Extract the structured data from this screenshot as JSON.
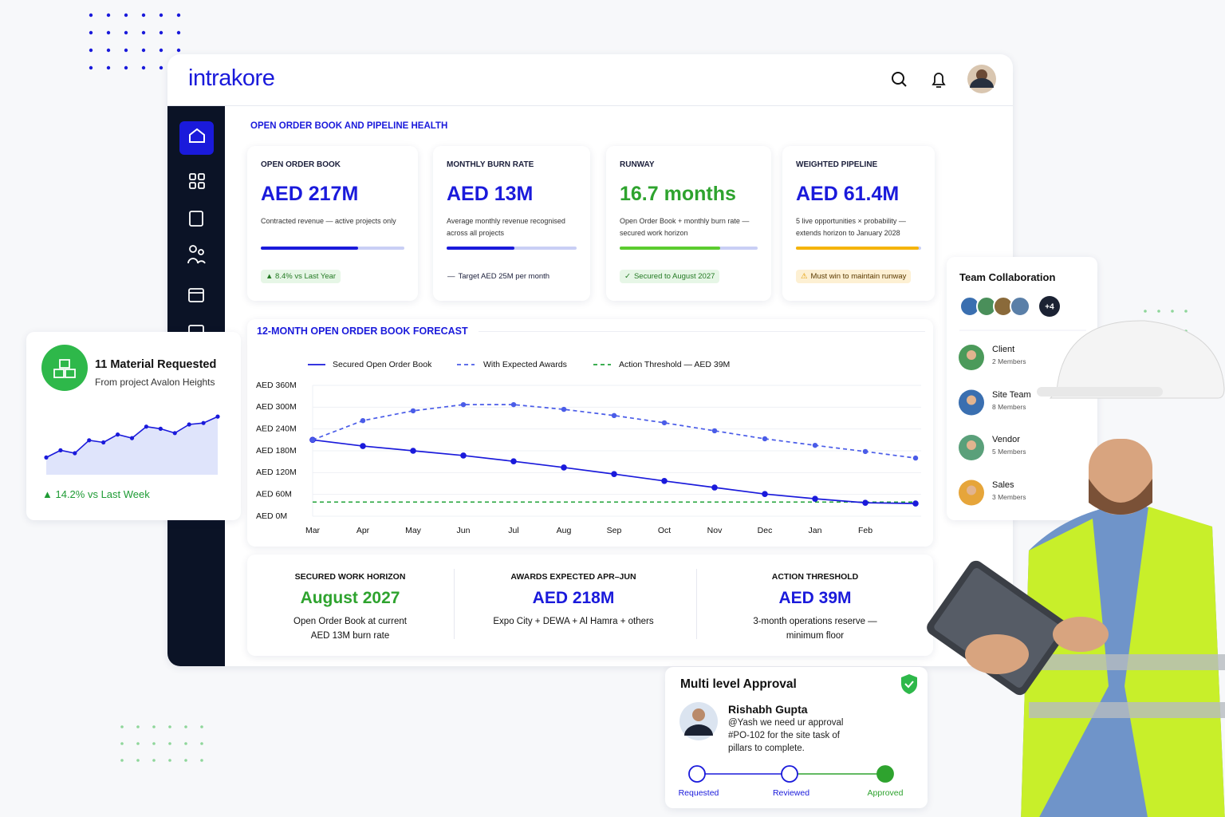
{
  "brand": "intrakore",
  "section_title": "OPEN ORDER BOOK AND PIPELINE HEALTH",
  "kpis": [
    {
      "label": "OPEN ORDER BOOK",
      "value": "AED 217M",
      "description": [
        "Contracted revenue — active projects only"
      ],
      "progress": 68,
      "color": "#1a1adb",
      "bar_color": "#1a1adb",
      "badge": "▲ 8.4% vs Last Year"
    },
    {
      "label": "MONTHLY BURN RATE",
      "value": "AED 13M",
      "description": [
        "Average monthly revenue recognised",
        "across all projects"
      ],
      "progress": 52,
      "color": "#1a1adb",
      "bar_color": "#1a1adb",
      "badge": "Target AED 25M per month"
    },
    {
      "label": "RUNWAY",
      "value": "16.7 months",
      "description": [
        "Open Order Book + monthly burn rate —",
        "secured work horizon"
      ],
      "progress": 73,
      "color": "#2ea32e",
      "bar_color": "#5ccc2f",
      "badge": "Secured to August 2027"
    },
    {
      "label": "WEIGHTED PIPELINE",
      "value": "AED 61.4M",
      "description": [
        "5 live opportunities × probability —",
        "extends horizon to January 2028"
      ],
      "progress": 98,
      "color": "#1a1adb",
      "bar_color": "#f5b40b",
      "badge": "Must win to maintain runway"
    }
  ],
  "chart": {
    "type": "line",
    "title": "12-MONTH OPEN ORDER BOOK FORECAST",
    "categories": [
      "Mar",
      "Apr",
      "May",
      "Jun",
      "Jul",
      "Aug",
      "Sep",
      "Oct",
      "Nov",
      "Dec",
      "Jan",
      "Feb",
      null
    ],
    "series": [
      {
        "name": "Secured Open Order Book",
        "color": "#1a1adb",
        "dashed": false,
        "values": [
          210,
          193,
          180,
          167,
          151,
          134,
          116,
          97,
          79,
          61,
          48,
          37,
          35
        ]
      },
      {
        "name": "With Expected Awards",
        "color": "#4a5ce8",
        "dashed": true,
        "values": [
          210,
          263,
          290,
          307,
          307,
          294,
          277,
          257,
          235,
          213,
          195,
          178,
          160
        ]
      }
    ],
    "threshold": {
      "name": "Action Threshold — AED 39M",
      "value": 39,
      "color": "#22a33a"
    },
    "ylim": [
      0,
      360
    ],
    "yticks": [
      {
        "value": 0,
        "label": "AED 0M"
      },
      {
        "value": 60,
        "label": "AED 60M"
      },
      {
        "value": 120,
        "label": "AED 120M"
      },
      {
        "value": 180,
        "label": "AED 180M"
      },
      {
        "value": 240,
        "label": "AED 240M"
      },
      {
        "value": 300,
        "label": "AED 300M"
      },
      {
        "value": 360,
        "label": "AED 360M"
      }
    ],
    "grid": true
  },
  "summary": [
    {
      "label": "SECURED WORK HORIZON",
      "value": "August 2027",
      "color": "#2ea32e",
      "description": [
        "Open Order Book at current",
        "AED 13M burn rate"
      ]
    },
    {
      "label": "AWARDS EXPECTED APR–JUN",
      "value": "AED 218M",
      "color": "#1a1adb",
      "description": [
        "Expo City + DEWA + Al Hamra + others"
      ]
    },
    {
      "label": "ACTION THRESHOLD",
      "value": "AED 39M",
      "color": "#1a1adb",
      "description": [
        "3-month operations reserve —",
        "minimum floor"
      ]
    }
  ],
  "material_card": {
    "title": "11 Material Requested",
    "subtitle": "From project Avalon Heights",
    "trend": "▲ 14.2% vs Last Week",
    "sparkline": {
      "type": "line",
      "values": [
        24,
        34,
        30,
        48,
        45,
        56,
        51,
        67,
        64,
        58,
        70,
        72,
        81
      ],
      "ylim": [
        0,
        100
      ]
    }
  },
  "team": {
    "title": "Team Collaboration",
    "more": "+4",
    "groups": [
      {
        "name": "Client",
        "members": "2 Members"
      },
      {
        "name": "Site Team",
        "members": "8 Members"
      },
      {
        "name": "Vendor",
        "members": "5 Members"
      },
      {
        "name": "Sales",
        "members": "3 Members"
      }
    ]
  },
  "approval": {
    "title": "Multi level Approval",
    "name": "Rishabh Gupta",
    "message": [
      "@Yash we need ur approval",
      "#PO-102 for the site task of",
      "pillars to complete."
    ],
    "steps": [
      "Requested",
      "Reviewed",
      "Approved"
    ]
  }
}
